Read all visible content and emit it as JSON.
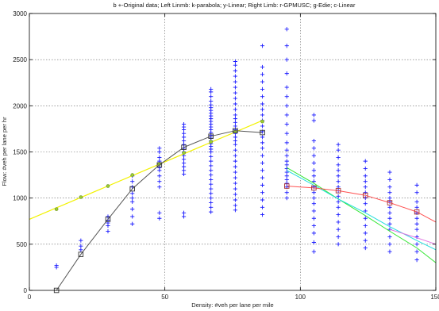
{
  "chart_data": {
    "type": "scatter",
    "title": "b +-Original data; Left Linmb: k-parabola; y-Linear; Right Limb: r-GPMUSC; g-Edie; c-Linear",
    "xlabel": "Density: #veh per lane per mile",
    "ylabel": "Flow: #veh per lane per hr",
    "xlim": [
      0,
      150
    ],
    "ylim": [
      0,
      3000
    ],
    "xticks": [
      0,
      50,
      100,
      150
    ],
    "yticks": [
      0,
      500,
      1000,
      1500,
      2000,
      2500,
      3000
    ],
    "grid": true,
    "colors": {
      "data": "#1a1aff",
      "k": "#555555",
      "y": "#f2f200",
      "r": "#ff5050",
      "g": "#33e633",
      "c": "#22dddd",
      "m": "#e070e0"
    },
    "series": [
      {
        "key": "data",
        "style": "plus",
        "groups": [
          {
            "x": 10,
            "y": [
              250,
              270
            ]
          },
          {
            "x": 19,
            "y": [
              440,
              480,
              540
            ]
          },
          {
            "x": 29,
            "y": [
              640,
              700,
              730,
              760,
              800
            ]
          },
          {
            "x": 38,
            "y": [
              720,
              800,
              880,
              960,
              1000,
              1050,
              1120,
              1180,
              1240
            ]
          },
          {
            "x": 48,
            "y": [
              780,
              840,
              1120,
              1180,
              1240,
              1300,
              1330,
              1360,
              1400,
              1440,
              1500,
              1540
            ]
          },
          {
            "x": 57,
            "y": [
              800,
              840,
              1260,
              1300,
              1340,
              1380,
              1420,
              1460,
              1500,
              1540,
              1580,
              1620,
              1660,
              1700,
              1740,
              1770,
              1800
            ]
          },
          {
            "x": 67,
            "y": [
              850,
              900,
              950,
              1000,
              1050,
              1100,
              1150,
              1200,
              1250,
              1300,
              1350,
              1400,
              1450,
              1500,
              1530,
              1560,
              1590,
              1620,
              1650,
              1680,
              1710,
              1740,
              1770,
              1800,
              1830,
              1860,
              1890,
              1920,
              1950,
              1980,
              2010,
              2050,
              2100,
              2150,
              2180
            ]
          },
          {
            "x": 76,
            "y": [
              870,
              920,
              980,
              1040,
              1100,
              1160,
              1220,
              1280,
              1340,
              1400,
              1460,
              1520,
              1580,
              1620,
              1660,
              1700,
              1740,
              1780,
              1820,
              1860,
              1900,
              1960,
              2020,
              2080,
              2140,
              2200,
              2260,
              2320,
              2380,
              2440,
              2480
            ]
          },
          {
            "x": 86,
            "y": [
              820,
              900,
              980,
              1060,
              1140,
              1220,
              1300,
              1380,
              1460,
              1540,
              1600,
              1660,
              1720,
              1780,
              1840,
              1900,
              1960,
              2020,
              2100,
              2180,
              2260,
              2340,
              2420,
              2650
            ]
          },
          {
            "x": 95,
            "y": [
              1000,
              1060,
              1120,
              1160,
              1200,
              1240,
              1280,
              1320,
              1360,
              1400,
              1460,
              1520,
              1600,
              1700,
              1800,
              1900,
              2000,
              2100,
              2200,
              2350,
              2500,
              2650,
              2830
            ]
          },
          {
            "x": 105,
            "y": [
              420,
              520,
              620,
              700,
              780,
              860,
              940,
              1000,
              1060,
              1120,
              1180,
              1240,
              1300,
              1380,
              1460,
              1540,
              1620,
              1840,
              1900
            ]
          },
          {
            "x": 114,
            "y": [
              500,
              580,
              660,
              740,
              820,
              900,
              960,
              1020,
              1080,
              1120,
              1180,
              1240,
              1300,
              1360,
              1440,
              1520,
              1580
            ]
          },
          {
            "x": 124,
            "y": [
              460,
              540,
              620,
              700,
              780,
              860,
              940,
              1000,
              1060,
              1120,
              1180,
              1240,
              1320,
              1400
            ]
          },
          {
            "x": 133,
            "y": [
              420,
              500,
              580,
              660,
              720,
              780,
              840,
              900,
              960,
              1000,
              1060,
              1120,
              1200,
              1280
            ]
          },
          {
            "x": 143,
            "y": [
              330,
              420,
              500,
              580,
              660,
              720,
              780,
              840,
              900,
              960,
              1060,
              1140
            ]
          }
        ]
      },
      {
        "key": "k",
        "style": "line-square",
        "x": [
          10,
          19,
          29,
          38,
          48,
          57,
          67,
          76,
          86
        ],
        "y": [
          0,
          390,
          770,
          1100,
          1360,
          1550,
          1670,
          1730,
          1710
        ]
      },
      {
        "key": "y",
        "style": "line-circle",
        "line_x": [
          0,
          86
        ],
        "line_y": [
          770,
          1840
        ],
        "x": [
          10,
          19,
          29,
          38,
          48,
          57,
          67,
          76,
          86
        ],
        "y": [
          880,
          1010,
          1130,
          1250,
          1370,
          1490,
          1610,
          1720,
          1830
        ]
      },
      {
        "key": "r",
        "style": "line-square",
        "x": [
          95,
          105,
          114,
          124,
          133,
          143,
          150
        ],
        "y": [
          1130,
          1110,
          1080,
          1030,
          950,
          850,
          740
        ]
      },
      {
        "key": "g",
        "style": "line",
        "x": [
          95,
          105,
          114,
          124,
          133,
          143,
          150
        ],
        "y": [
          1330,
          1160,
          990,
          810,
          640,
          460,
          300
        ]
      },
      {
        "key": "c",
        "style": "line",
        "x": [
          95,
          105,
          114,
          124,
          133,
          143,
          150
        ],
        "y": [
          1300,
          1140,
          990,
          840,
          690,
          540,
          440
        ]
      },
      {
        "key": "m",
        "style": "line",
        "x": [
          133,
          143,
          150
        ],
        "y": [
          660,
          570,
          500
        ]
      }
    ]
  }
}
